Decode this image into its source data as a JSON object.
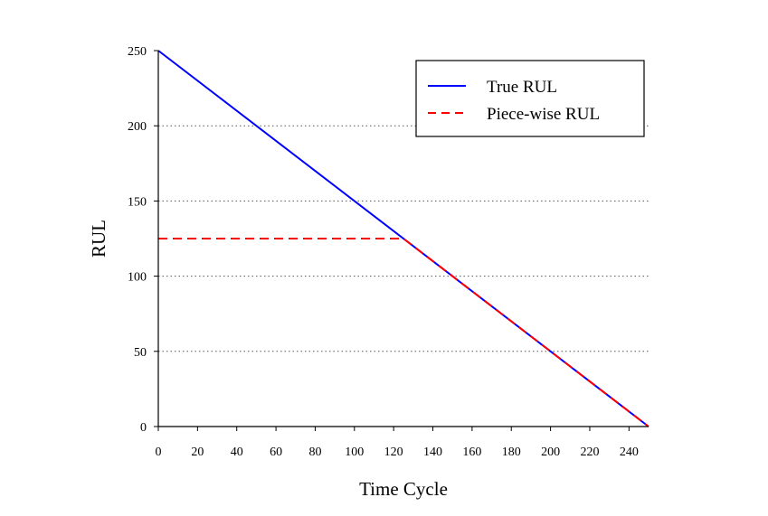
{
  "chart_data": {
    "type": "line",
    "title": "",
    "xlabel": "Time Cycle",
    "ylabel": "RUL",
    "xlim": [
      0,
      250
    ],
    "ylim": [
      0,
      250
    ],
    "xticks": [
      0,
      20,
      40,
      60,
      80,
      100,
      120,
      140,
      160,
      180,
      200,
      220,
      240
    ],
    "yticks": [
      0,
      50,
      100,
      150,
      200,
      250
    ],
    "grid": {
      "y": true,
      "x": false,
      "style": "dotted"
    },
    "legend_position": "top-right",
    "series": [
      {
        "name": "True RUL",
        "color": "#0000ff",
        "dash": "solid",
        "points": [
          [
            0,
            250
          ],
          [
            250,
            0
          ]
        ]
      },
      {
        "name": "Piece-wise RUL",
        "color": "#ff0000",
        "dash": "dashed",
        "points": [
          [
            0,
            125
          ],
          [
            125,
            125
          ],
          [
            250,
            0
          ]
        ]
      }
    ]
  }
}
